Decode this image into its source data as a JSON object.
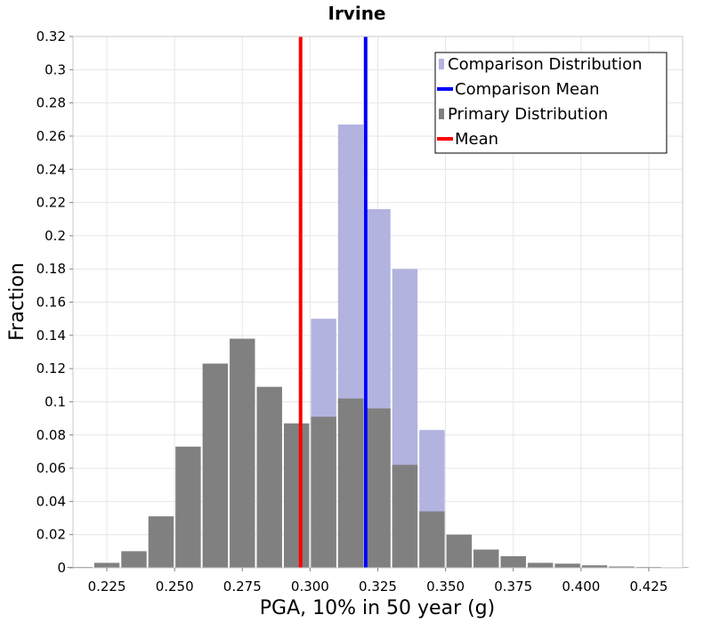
{
  "chart_data": {
    "type": "bar",
    "title": "Irvine",
    "xlabel": "PGA, 10% in 50 year (g)",
    "ylabel": "Fraction",
    "xlim": [
      0.2125,
      0.4375
    ],
    "ylim": [
      0,
      0.32
    ],
    "xticks": [
      "0.225",
      "0.250",
      "0.275",
      "0.300",
      "0.325",
      "0.350",
      "0.375",
      "0.400",
      "0.425"
    ],
    "xtick_values": [
      0.225,
      0.25,
      0.275,
      0.3,
      0.325,
      0.35,
      0.375,
      0.4,
      0.425
    ],
    "yticks": [
      "0",
      "0.02",
      "0.04",
      "0.06",
      "0.08",
      "0.1",
      "0.12",
      "0.14",
      "0.16",
      "0.18",
      "0.2",
      "0.22",
      "0.24",
      "0.26",
      "0.28",
      "0.3",
      "0.32"
    ],
    "ytick_values": [
      0,
      0.02,
      0.04,
      0.06,
      0.08,
      0.1,
      0.12,
      0.14,
      0.16,
      0.18,
      0.2,
      0.22,
      0.24,
      0.26,
      0.28,
      0.3,
      0.32
    ],
    "grid": true,
    "legend_position": "top-right",
    "bin_width": 0.01,
    "series": [
      {
        "name": "Comparison Distribution",
        "kind": "bar",
        "color": "#b3b3e0",
        "x": [
          0.305,
          0.315,
          0.325,
          0.335,
          0.345
        ],
        "values": [
          0.15,
          0.267,
          0.216,
          0.18,
          0.083
        ]
      },
      {
        "name": "Comparison Mean",
        "kind": "vline",
        "color": "#0000ff",
        "x": 0.3205
      },
      {
        "name": "Primary Distribution",
        "kind": "bar",
        "color": "#808080",
        "x": [
          0.215,
          0.225,
          0.235,
          0.245,
          0.255,
          0.265,
          0.275,
          0.285,
          0.295,
          0.305,
          0.315,
          0.325,
          0.335,
          0.345,
          0.355,
          0.365,
          0.375,
          0.385,
          0.395,
          0.405,
          0.415,
          0.425,
          0.435
        ],
        "values": [
          0.0005,
          0.003,
          0.01,
          0.031,
          0.073,
          0.123,
          0.138,
          0.109,
          0.087,
          0.091,
          0.102,
          0.096,
          0.062,
          0.034,
          0.02,
          0.011,
          0.007,
          0.003,
          0.0025,
          0.0015,
          0.0008,
          0.0005,
          0.0003
        ]
      },
      {
        "name": "Mean",
        "kind": "vline",
        "color": "#ff0000",
        "x": 0.2965
      }
    ]
  }
}
